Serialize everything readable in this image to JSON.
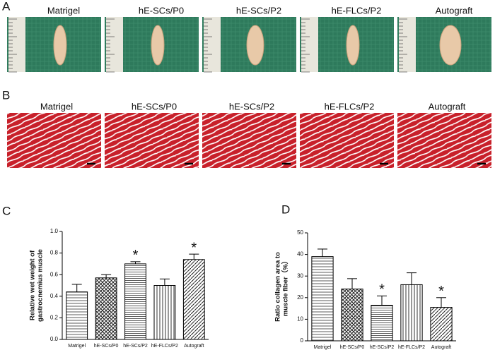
{
  "panel_labels": [
    "A",
    "B",
    "C",
    "D"
  ],
  "panel_a": {
    "captions": [
      "Matrigel",
      "hE-SCs/P0",
      "hE-SCs/P2",
      "hE-FLCs/P2",
      "Autograft"
    ]
  },
  "panel_b": {
    "captions": [
      "Matrigel",
      "hE-SCs/P0",
      "hE-SCs/P2",
      "hE-FLCs/P2",
      "Autograft"
    ]
  },
  "chart_data": [
    {
      "type": "bar",
      "ylabel": [
        "Relative wet weight of",
        "gastrocnemius muscle"
      ],
      "categories": [
        "Matrigel",
        "hE-SCs/P0",
        "hE-SCs/P2",
        "hE-FLCs/P2",
        "Autograft"
      ],
      "values": [
        0.44,
        0.57,
        0.7,
        0.5,
        0.74
      ],
      "errors": [
        0.07,
        0.03,
        0.02,
        0.06,
        0.05
      ],
      "significance": [
        null,
        null,
        "*",
        null,
        "*"
      ],
      "ylim": [
        0,
        1
      ],
      "yticks": [
        {
          "value": 0,
          "label": "0.0"
        },
        0.2,
        0.4,
        0.6,
        0.8,
        {
          "value": 1,
          "label": "1.0"
        }
      ]
    },
    {
      "type": "bar",
      "ylabel": [
        "Ratio collagen area to",
        "muscle fiber（%）"
      ],
      "categories": [
        "Matrigel",
        "hE-SCs/P0",
        "hE-SCs/P2",
        "hE-FLCs/P2",
        "Autograft"
      ],
      "values": [
        39,
        24,
        16.5,
        26,
        15.5
      ],
      "errors": [
        3.5,
        4.8,
        4.3,
        5.5,
        4.5
      ],
      "significance": [
        null,
        null,
        "*",
        null,
        "*"
      ],
      "ylim": [
        0,
        50
      ],
      "yticks": [
        0,
        10,
        20,
        30,
        40,
        50
      ]
    }
  ]
}
